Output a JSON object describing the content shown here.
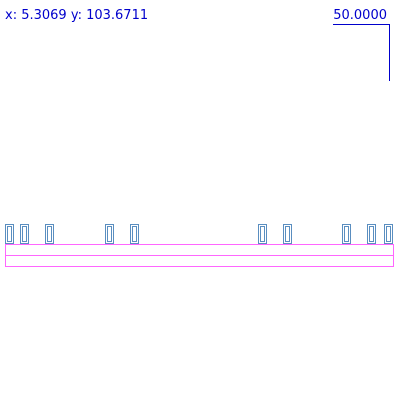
{
  "viewer": {
    "coordinate_readout": "x: 5.3069 y: 103.6711",
    "scale_bar_label": "50.0000"
  },
  "colors": {
    "readout_text": "#0000cc",
    "scale_bar": "#0000cc",
    "cell_outline": "#ff66ff",
    "pin_outline": "#5a8ec0",
    "background": "#ffffff"
  }
}
